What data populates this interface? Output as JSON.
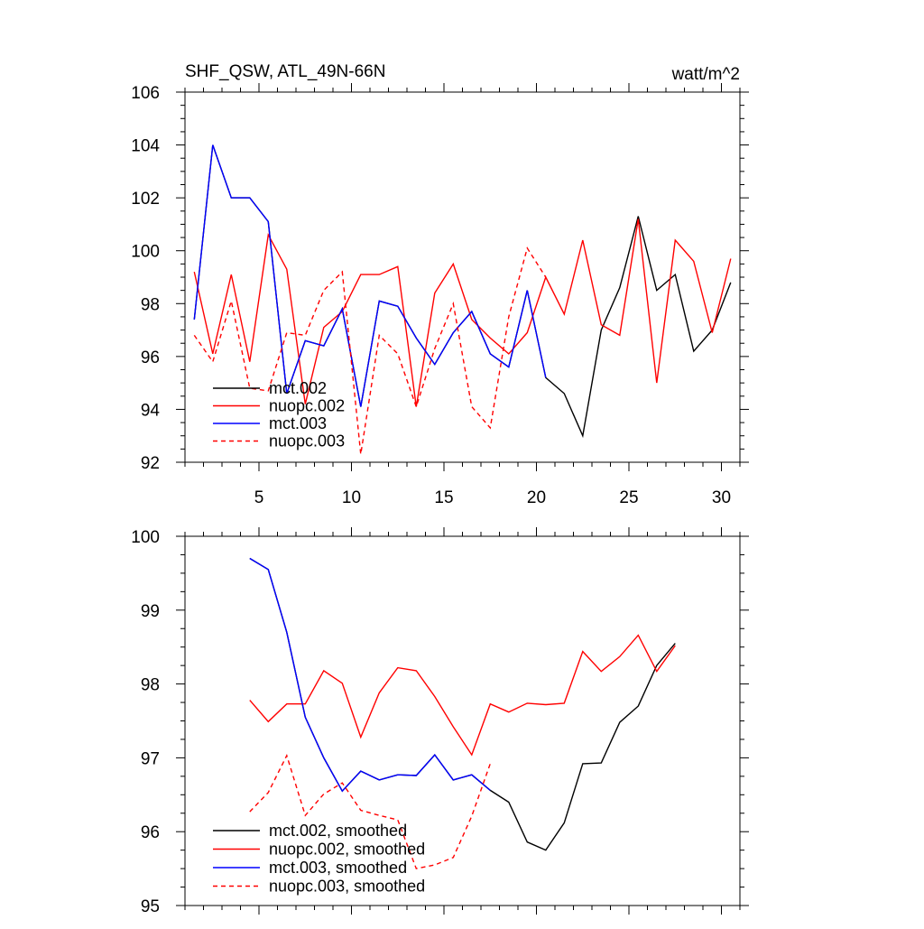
{
  "chart_data": [
    {
      "type": "line",
      "title": "SHF_QSW, ATL_49N-66N",
      "units": "watt/m^2",
      "xlim": [
        1,
        31
      ],
      "ylim": [
        92,
        106
      ],
      "xticks": [
        5,
        10,
        15,
        20,
        25,
        30
      ],
      "yticks": [
        92,
        94,
        96,
        98,
        100,
        102,
        104,
        106
      ],
      "legend_position": "bottom-left",
      "series": [
        {
          "name": "mct.002",
          "color": "#000000",
          "dash": "solid",
          "x": [
            1.5,
            2.5,
            3.5,
            4.5,
            5.5,
            6.5,
            7.5,
            8.5,
            9.5,
            10.5,
            11.5,
            12.5,
            13.5,
            14.5,
            15.5,
            16.5,
            17.5,
            18.5,
            19.5,
            20.5,
            21.5,
            22.5,
            23.5,
            24.5,
            25.5,
            26.5,
            27.5,
            28.5,
            29.5,
            30.5
          ],
          "values": [
            97.4,
            104.0,
            102.0,
            102.0,
            101.1,
            94.6,
            96.6,
            96.4,
            97.8,
            94.1,
            98.1,
            97.9,
            96.7,
            95.7,
            96.9,
            97.7,
            96.1,
            95.6,
            98.5,
            95.2,
            94.6,
            93.0,
            97.0,
            98.6,
            101.3,
            98.5,
            99.1,
            96.2,
            97.0,
            98.8
          ]
        },
        {
          "name": "nuopc.002",
          "color": "#ff0000",
          "dash": "solid",
          "x": [
            1.5,
            2.5,
            3.5,
            4.5,
            5.5,
            6.5,
            7.5,
            8.5,
            9.5,
            10.5,
            11.5,
            12.5,
            13.5,
            14.5,
            15.5,
            16.5,
            17.5,
            18.5,
            19.5,
            20.5,
            21.5,
            22.5,
            23.5,
            24.5,
            25.5,
            26.5,
            27.5,
            28.5,
            29.5,
            30.5
          ],
          "values": [
            99.2,
            96.1,
            99.1,
            95.8,
            100.6,
            99.3,
            94.2,
            97.1,
            97.7,
            99.1,
            99.1,
            99.4,
            94.1,
            98.4,
            99.5,
            97.4,
            96.7,
            96.1,
            96.9,
            99.0,
            97.6,
            100.4,
            97.2,
            96.8,
            101.2,
            95.0,
            100.4,
            99.6,
            96.9,
            99.7
          ]
        },
        {
          "name": "mct.003",
          "color": "#0000ff",
          "dash": "solid",
          "x": [
            1.5,
            2.5,
            3.5,
            4.5,
            5.5,
            6.5,
            7.5,
            8.5,
            9.5,
            10.5,
            11.5,
            12.5,
            13.5,
            14.5,
            15.5,
            16.5,
            17.5,
            18.5,
            19.5,
            20.5
          ],
          "values": [
            97.4,
            104.0,
            102.0,
            102.0,
            101.1,
            94.6,
            96.6,
            96.4,
            97.8,
            94.1,
            98.1,
            97.9,
            96.7,
            95.7,
            96.9,
            97.7,
            96.1,
            95.6,
            98.5,
            95.2
          ]
        },
        {
          "name": "nuopc.003",
          "color": "#ff0000",
          "dash": "dashed",
          "x": [
            1.5,
            2.5,
            3.5,
            4.5,
            5.5,
            6.5,
            7.5,
            8.5,
            9.5,
            10.5,
            11.5,
            12.5,
            13.5,
            14.5,
            15.5,
            16.5,
            17.5,
            18.5,
            19.5,
            20.5
          ],
          "values": [
            96.8,
            95.8,
            98.1,
            94.8,
            94.7,
            96.9,
            96.8,
            98.5,
            99.2,
            92.3,
            96.8,
            96.1,
            94.1,
            96.3,
            98.0,
            94.1,
            93.3,
            97.5,
            100.1,
            99.0
          ]
        }
      ]
    },
    {
      "type": "line",
      "title": "",
      "xlim": [
        1,
        31
      ],
      "ylim": [
        95,
        100
      ],
      "xticks": [
        5,
        10,
        15,
        20,
        25,
        30
      ],
      "yticks": [
        95,
        96,
        97,
        98,
        99,
        100
      ],
      "legend_position": "bottom-left",
      "series": [
        {
          "name": "mct.002, smoothed",
          "color": "#000000",
          "dash": "solid",
          "x": [
            4.5,
            5.5,
            6.5,
            7.5,
            8.5,
            9.5,
            10.5,
            11.5,
            12.5,
            13.5,
            14.5,
            15.5,
            16.5,
            17.5,
            18.5,
            19.5,
            20.5,
            21.5,
            22.5,
            23.5,
            24.5,
            25.5,
            26.5,
            27.5
          ],
          "values": [
            99.7,
            99.55,
            98.7,
            97.55,
            97.0,
            96.55,
            96.82,
            96.7,
            96.77,
            96.76,
            97.04,
            96.7,
            96.77,
            96.56,
            96.4,
            95.86,
            95.75,
            96.12,
            96.92,
            96.93,
            97.48,
            97.7,
            98.25,
            98.55
          ]
        },
        {
          "name": "nuopc.002, smoothed",
          "color": "#ff0000",
          "dash": "solid",
          "x": [
            4.5,
            5.5,
            6.5,
            7.5,
            8.5,
            9.5,
            10.5,
            11.5,
            12.5,
            13.5,
            14.5,
            15.5,
            16.5,
            17.5,
            18.5,
            19.5,
            20.5,
            21.5,
            22.5,
            23.5,
            24.5,
            25.5,
            26.5,
            27.5
          ],
          "values": [
            97.78,
            97.49,
            97.73,
            97.73,
            98.18,
            98.01,
            97.28,
            97.88,
            98.22,
            98.18,
            97.83,
            97.42,
            97.04,
            97.73,
            97.62,
            97.74,
            97.72,
            97.74,
            98.44,
            98.17,
            98.37,
            98.66,
            98.17,
            98.52
          ]
        },
        {
          "name": "mct.003, smoothed",
          "color": "#0000ff",
          "dash": "solid",
          "x": [
            4.5,
            5.5,
            6.5,
            7.5,
            8.5,
            9.5,
            10.5,
            11.5,
            12.5,
            13.5,
            14.5,
            15.5,
            16.5,
            17.5
          ],
          "values": [
            99.7,
            99.55,
            98.7,
            97.55,
            97.0,
            96.55,
            96.82,
            96.7,
            96.77,
            96.76,
            97.04,
            96.7,
            96.77,
            96.56
          ]
        },
        {
          "name": "nuopc.003, smoothed",
          "color": "#ff0000",
          "dash": "dashed",
          "x": [
            4.5,
            5.5,
            6.5,
            7.5,
            8.5,
            9.5,
            10.5,
            11.5,
            12.5,
            13.5,
            14.5,
            15.5,
            16.5,
            17.5
          ],
          "values": [
            96.27,
            96.53,
            97.03,
            96.22,
            96.51,
            96.66,
            96.29,
            96.22,
            96.16,
            95.5,
            95.55,
            95.65,
            96.21,
            96.92
          ]
        }
      ]
    }
  ]
}
